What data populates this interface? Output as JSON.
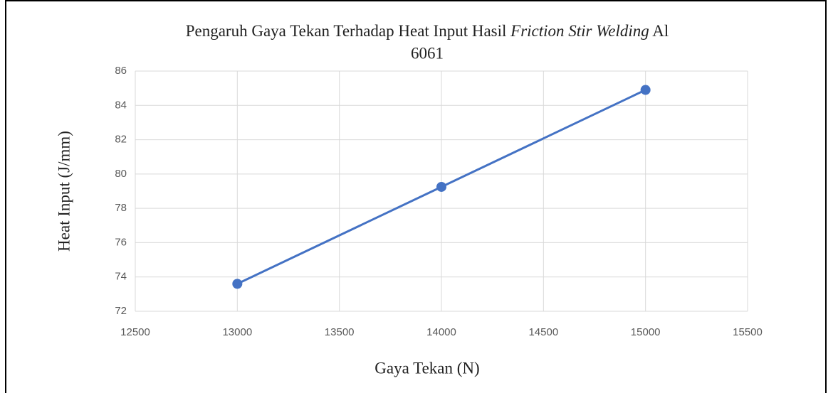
{
  "chart_data": {
    "type": "line",
    "title": [
      "Pengaruh Gaya Tekan Terhadap Heat Input Hasil",
      "Friction Stir Welding",
      "Al",
      "6061"
    ],
    "title_italic": [
      false,
      true,
      false,
      false
    ],
    "x_label": "Gaya Tekan (N)",
    "y_label": "Heat Input (J/mm)",
    "x": [
      13000,
      14000,
      15000
    ],
    "values": [
      73.6,
      79.25,
      84.9
    ],
    "color": "#4472c4",
    "markers": true,
    "xlim": [
      12500,
      15500
    ],
    "xticks": [
      12500,
      13000,
      13500,
      14000,
      14500,
      15000,
      15500
    ],
    "ylim": [
      72,
      86
    ],
    "yticks": [
      72,
      74,
      76,
      78,
      80,
      82,
      84,
      86
    ],
    "grid": true
  }
}
